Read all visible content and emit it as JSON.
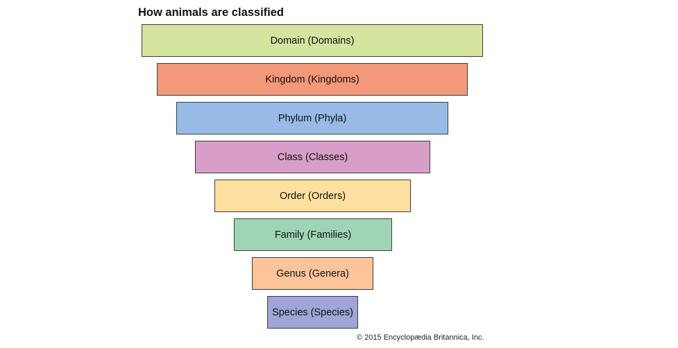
{
  "title": "How animals are classified",
  "levels": [
    {
      "label": "Domain (Domains)",
      "color": "#d4e5a0"
    },
    {
      "label": "Kingdom (Kingdoms)",
      "color": "#f4987a"
    },
    {
      "label": "Phylum (Phyla)",
      "color": "#97bbe6"
    },
    {
      "label": "Class (Classes)",
      "color": "#d89ec7"
    },
    {
      "label": "Order (Orders)",
      "color": "#fee1a0"
    },
    {
      "label": "Family (Families)",
      "color": "#9ed6b5"
    },
    {
      "label": "Genus (Genera)",
      "color": "#fdc499"
    },
    {
      "label": "Species (Species)",
      "color": "#9fa5d7"
    }
  ],
  "credit": "© 2015 Encyclopædia Britannica, Inc."
}
